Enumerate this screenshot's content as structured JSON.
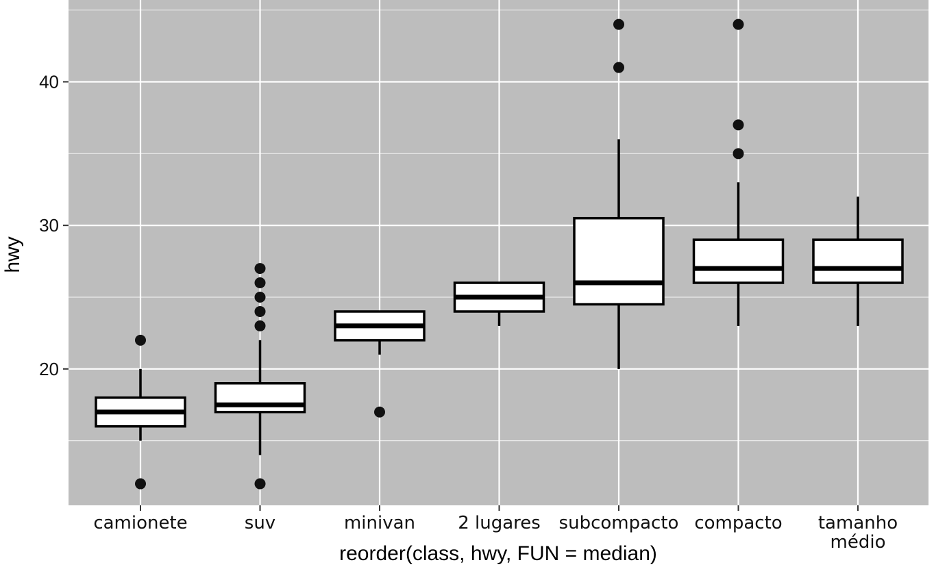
{
  "chart_data": {
    "type": "boxplot",
    "xlabel": "reorder(class, hwy, FUN = median)",
    "ylabel": "hwy",
    "ylim": [
      10.5,
      45.7
    ],
    "yticks": [
      20,
      30,
      40
    ],
    "ytick_labels": [
      "20",
      "30",
      "40"
    ],
    "grid": true,
    "colors": {
      "panel_background": "#bdbdbd",
      "grid_major": "#ffffff",
      "grid_minor": "#ececec",
      "box_fill": "#ffffff",
      "box_stroke": "#000000",
      "outlier": "#111111"
    },
    "categories": [
      {
        "label": "camionete",
        "lines": [
          "camionete"
        ],
        "lower_whisker": 15,
        "q1": 16,
        "median": 17,
        "q3": 18,
        "upper_whisker": 20,
        "outliers": [
          22,
          12
        ]
      },
      {
        "label": "suv",
        "lines": [
          "suv"
        ],
        "lower_whisker": 14,
        "q1": 17,
        "median": 17.5,
        "q3": 19,
        "upper_whisker": 22,
        "outliers": [
          27,
          26,
          25,
          24,
          23,
          12
        ]
      },
      {
        "label": "minivan",
        "lines": [
          "minivan"
        ],
        "lower_whisker": 21,
        "q1": 22,
        "median": 23,
        "q3": 24,
        "upper_whisker": 24,
        "outliers": [
          17
        ]
      },
      {
        "label": "2 lugares",
        "lines": [
          "2 lugares"
        ],
        "lower_whisker": 23,
        "q1": 24,
        "median": 25,
        "q3": 26,
        "upper_whisker": 26,
        "outliers": []
      },
      {
        "label": "subcompacto",
        "lines": [
          "subcompacto"
        ],
        "lower_whisker": 20,
        "q1": 24.5,
        "median": 26,
        "q3": 30.5,
        "upper_whisker": 36,
        "outliers": [
          44,
          41
        ]
      },
      {
        "label": "compacto",
        "lines": [
          "compacto"
        ],
        "lower_whisker": 23,
        "q1": 26,
        "median": 27,
        "q3": 29,
        "upper_whisker": 33,
        "outliers": [
          44,
          37,
          35
        ]
      },
      {
        "label": "tamanho médio",
        "lines": [
          "tamanho",
          "médio"
        ],
        "lower_whisker": 23,
        "q1": 26,
        "median": 27,
        "q3": 29,
        "upper_whisker": 32,
        "outliers": []
      }
    ]
  }
}
